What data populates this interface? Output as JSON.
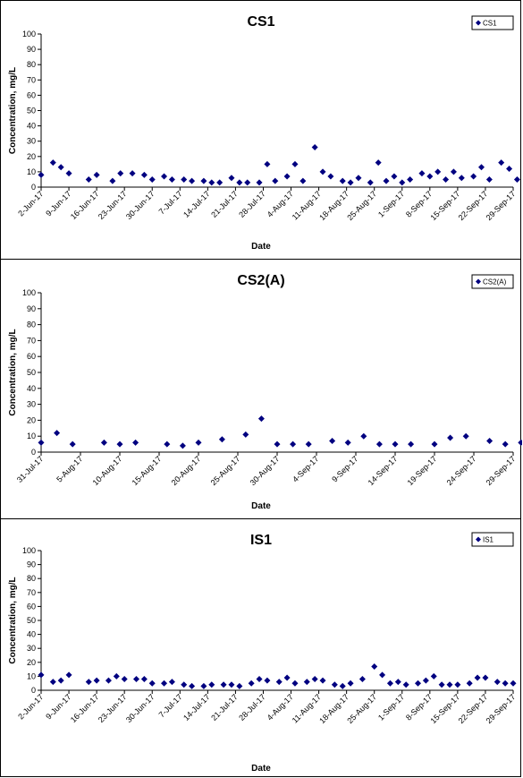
{
  "chart_data": [
    {
      "type": "scatter",
      "title": "CS1",
      "xlabel": "Date",
      "ylabel": "Concentration, mg/L",
      "ylim": [
        0,
        100
      ],
      "yticks": [
        "0",
        "10",
        "20",
        "30",
        "40",
        "50",
        "60",
        "70",
        "80",
        "90",
        "100"
      ],
      "xlim": [
        "2017-06-02",
        "2017-09-29"
      ],
      "xticks": [
        "2-Jun-17",
        "9-Jun-17",
        "16-Jun-17",
        "23-Jun-17",
        "30-Jun-17",
        "7-Jul-17",
        "14-Jul-17",
        "21-Jul-17",
        "28-Jul-17",
        "4-Aug-17",
        "11-Aug-17",
        "18-Aug-17",
        "25-Aug-17",
        "1-Sep-17",
        "8-Sep-17",
        "15-Sep-17",
        "22-Sep-17",
        "29-Sep-17"
      ],
      "legend": "top-right",
      "grid": false,
      "color": "#000080",
      "series": [
        {
          "name": "CS1",
          "points": [
            [
              "2017-06-02",
              8
            ],
            [
              "2017-06-05",
              16
            ],
            [
              "2017-06-07",
              13
            ],
            [
              "2017-06-09",
              9
            ],
            [
              "2017-06-14",
              5
            ],
            [
              "2017-06-16",
              8
            ],
            [
              "2017-06-20",
              4
            ],
            [
              "2017-06-22",
              9
            ],
            [
              "2017-06-25",
              9
            ],
            [
              "2017-06-28",
              8
            ],
            [
              "2017-06-30",
              5
            ],
            [
              "2017-07-03",
              7
            ],
            [
              "2017-07-05",
              5
            ],
            [
              "2017-07-08",
              5
            ],
            [
              "2017-07-10",
              4
            ],
            [
              "2017-07-13",
              4
            ],
            [
              "2017-07-15",
              3
            ],
            [
              "2017-07-17",
              3
            ],
            [
              "2017-07-20",
              6
            ],
            [
              "2017-07-22",
              3
            ],
            [
              "2017-07-24",
              3
            ],
            [
              "2017-07-27",
              3
            ],
            [
              "2017-07-29",
              15
            ],
            [
              "2017-07-31",
              4
            ],
            [
              "2017-08-03",
              7
            ],
            [
              "2017-08-05",
              15
            ],
            [
              "2017-08-07",
              4
            ],
            [
              "2017-08-10",
              26
            ],
            [
              "2017-08-12",
              10
            ],
            [
              "2017-08-14",
              7
            ],
            [
              "2017-08-17",
              4
            ],
            [
              "2017-08-19",
              3
            ],
            [
              "2017-08-21",
              6
            ],
            [
              "2017-08-24",
              3
            ],
            [
              "2017-08-26",
              16
            ],
            [
              "2017-08-28",
              4
            ],
            [
              "2017-08-30",
              7
            ],
            [
              "2017-09-01",
              3
            ],
            [
              "2017-09-03",
              5
            ],
            [
              "2017-09-06",
              9
            ],
            [
              "2017-09-08",
              7
            ],
            [
              "2017-09-10",
              10
            ],
            [
              "2017-09-12",
              5
            ],
            [
              "2017-09-14",
              10
            ],
            [
              "2017-09-16",
              6
            ],
            [
              "2017-09-19",
              7
            ],
            [
              "2017-09-21",
              13
            ],
            [
              "2017-09-23",
              5
            ],
            [
              "2017-09-26",
              16
            ],
            [
              "2017-09-28",
              12
            ],
            [
              "2017-09-30",
              5
            ]
          ]
        }
      ]
    },
    {
      "type": "scatter",
      "title": "CS2(A)",
      "xlabel": "Date",
      "ylabel": "Concentration, mg/L",
      "ylim": [
        0,
        100
      ],
      "yticks": [
        "0",
        "10",
        "20",
        "30",
        "40",
        "50",
        "60",
        "70",
        "80",
        "90",
        "100"
      ],
      "xlim": [
        "2017-07-31",
        "2017-09-29"
      ],
      "xticks": [
        "31-Jul-17",
        "5-Aug-17",
        "10-Aug-17",
        "15-Aug-17",
        "20-Aug-17",
        "25-Aug-17",
        "30-Aug-17",
        "4-Sep-17",
        "9-Sep-17",
        "14-Sep-17",
        "19-Sep-17",
        "24-Sep-17",
        "29-Sep-17"
      ],
      "legend": "top-right",
      "grid": false,
      "color": "#000080",
      "series": [
        {
          "name": "CS2(A)",
          "points": [
            [
              "2017-07-31",
              6
            ],
            [
              "2017-08-02",
              12
            ],
            [
              "2017-08-04",
              5
            ],
            [
              "2017-08-08",
              6
            ],
            [
              "2017-08-10",
              5
            ],
            [
              "2017-08-12",
              6
            ],
            [
              "2017-08-16",
              5
            ],
            [
              "2017-08-18",
              4
            ],
            [
              "2017-08-20",
              6
            ],
            [
              "2017-08-23",
              8
            ],
            [
              "2017-08-26",
              11
            ],
            [
              "2017-08-28",
              21
            ],
            [
              "2017-08-30",
              5
            ],
            [
              "2017-09-01",
              5
            ],
            [
              "2017-09-03",
              5
            ],
            [
              "2017-09-06",
              7
            ],
            [
              "2017-09-08",
              6
            ],
            [
              "2017-09-10",
              10
            ],
            [
              "2017-09-12",
              5
            ],
            [
              "2017-09-14",
              5
            ],
            [
              "2017-09-16",
              5
            ],
            [
              "2017-09-19",
              5
            ],
            [
              "2017-09-21",
              9
            ],
            [
              "2017-09-23",
              10
            ],
            [
              "2017-09-26",
              7
            ],
            [
              "2017-09-28",
              5
            ],
            [
              "2017-09-30",
              6
            ]
          ]
        }
      ]
    },
    {
      "type": "scatter",
      "title": "IS1",
      "xlabel": "Date",
      "ylabel": "Concentration, mg/L",
      "ylim": [
        0,
        100
      ],
      "yticks": [
        "0",
        "10",
        "20",
        "30",
        "40",
        "50",
        "60",
        "70",
        "80",
        "90",
        "100"
      ],
      "xlim": [
        "2017-06-02",
        "2017-09-29"
      ],
      "xticks": [
        "2-Jun-17",
        "9-Jun-17",
        "16-Jun-17",
        "23-Jun-17",
        "30-Jun-17",
        "7-Jul-17",
        "14-Jul-17",
        "21-Jul-17",
        "28-Jul-17",
        "4-Aug-17",
        "11-Aug-17",
        "18-Aug-17",
        "25-Aug-17",
        "1-Sep-17",
        "8-Sep-17",
        "15-Sep-17",
        "22-Sep-17",
        "29-Sep-17"
      ],
      "legend": "top-right",
      "grid": false,
      "color": "#000080",
      "series": [
        {
          "name": "IS1",
          "points": [
            [
              "2017-06-02",
              11
            ],
            [
              "2017-06-05",
              6
            ],
            [
              "2017-06-07",
              7
            ],
            [
              "2017-06-09",
              11
            ],
            [
              "2017-06-14",
              6
            ],
            [
              "2017-06-16",
              7
            ],
            [
              "2017-06-19",
              7
            ],
            [
              "2017-06-21",
              10
            ],
            [
              "2017-06-23",
              8
            ],
            [
              "2017-06-26",
              8
            ],
            [
              "2017-06-28",
              8
            ],
            [
              "2017-06-30",
              5
            ],
            [
              "2017-07-03",
              5
            ],
            [
              "2017-07-05",
              6
            ],
            [
              "2017-07-08",
              4
            ],
            [
              "2017-07-10",
              3
            ],
            [
              "2017-07-13",
              3
            ],
            [
              "2017-07-15",
              4
            ],
            [
              "2017-07-18",
              4
            ],
            [
              "2017-07-20",
              4
            ],
            [
              "2017-07-22",
              3
            ],
            [
              "2017-07-25",
              5
            ],
            [
              "2017-07-27",
              8
            ],
            [
              "2017-07-29",
              7
            ],
            [
              "2017-08-01",
              6
            ],
            [
              "2017-08-03",
              9
            ],
            [
              "2017-08-05",
              5
            ],
            [
              "2017-08-08",
              6
            ],
            [
              "2017-08-10",
              8
            ],
            [
              "2017-08-12",
              7
            ],
            [
              "2017-08-15",
              4
            ],
            [
              "2017-08-17",
              3
            ],
            [
              "2017-08-19",
              5
            ],
            [
              "2017-08-22",
              8
            ],
            [
              "2017-08-25",
              17
            ],
            [
              "2017-08-27",
              11
            ],
            [
              "2017-08-29",
              5
            ],
            [
              "2017-08-31",
              6
            ],
            [
              "2017-09-02",
              4
            ],
            [
              "2017-09-05",
              5
            ],
            [
              "2017-09-07",
              7
            ],
            [
              "2017-09-09",
              10
            ],
            [
              "2017-09-11",
              4
            ],
            [
              "2017-09-13",
              4
            ],
            [
              "2017-09-15",
              4
            ],
            [
              "2017-09-18",
              5
            ],
            [
              "2017-09-20",
              9
            ],
            [
              "2017-09-22",
              9
            ],
            [
              "2017-09-25",
              6
            ],
            [
              "2017-09-27",
              5
            ],
            [
              "2017-09-29",
              5
            ]
          ]
        }
      ]
    }
  ]
}
